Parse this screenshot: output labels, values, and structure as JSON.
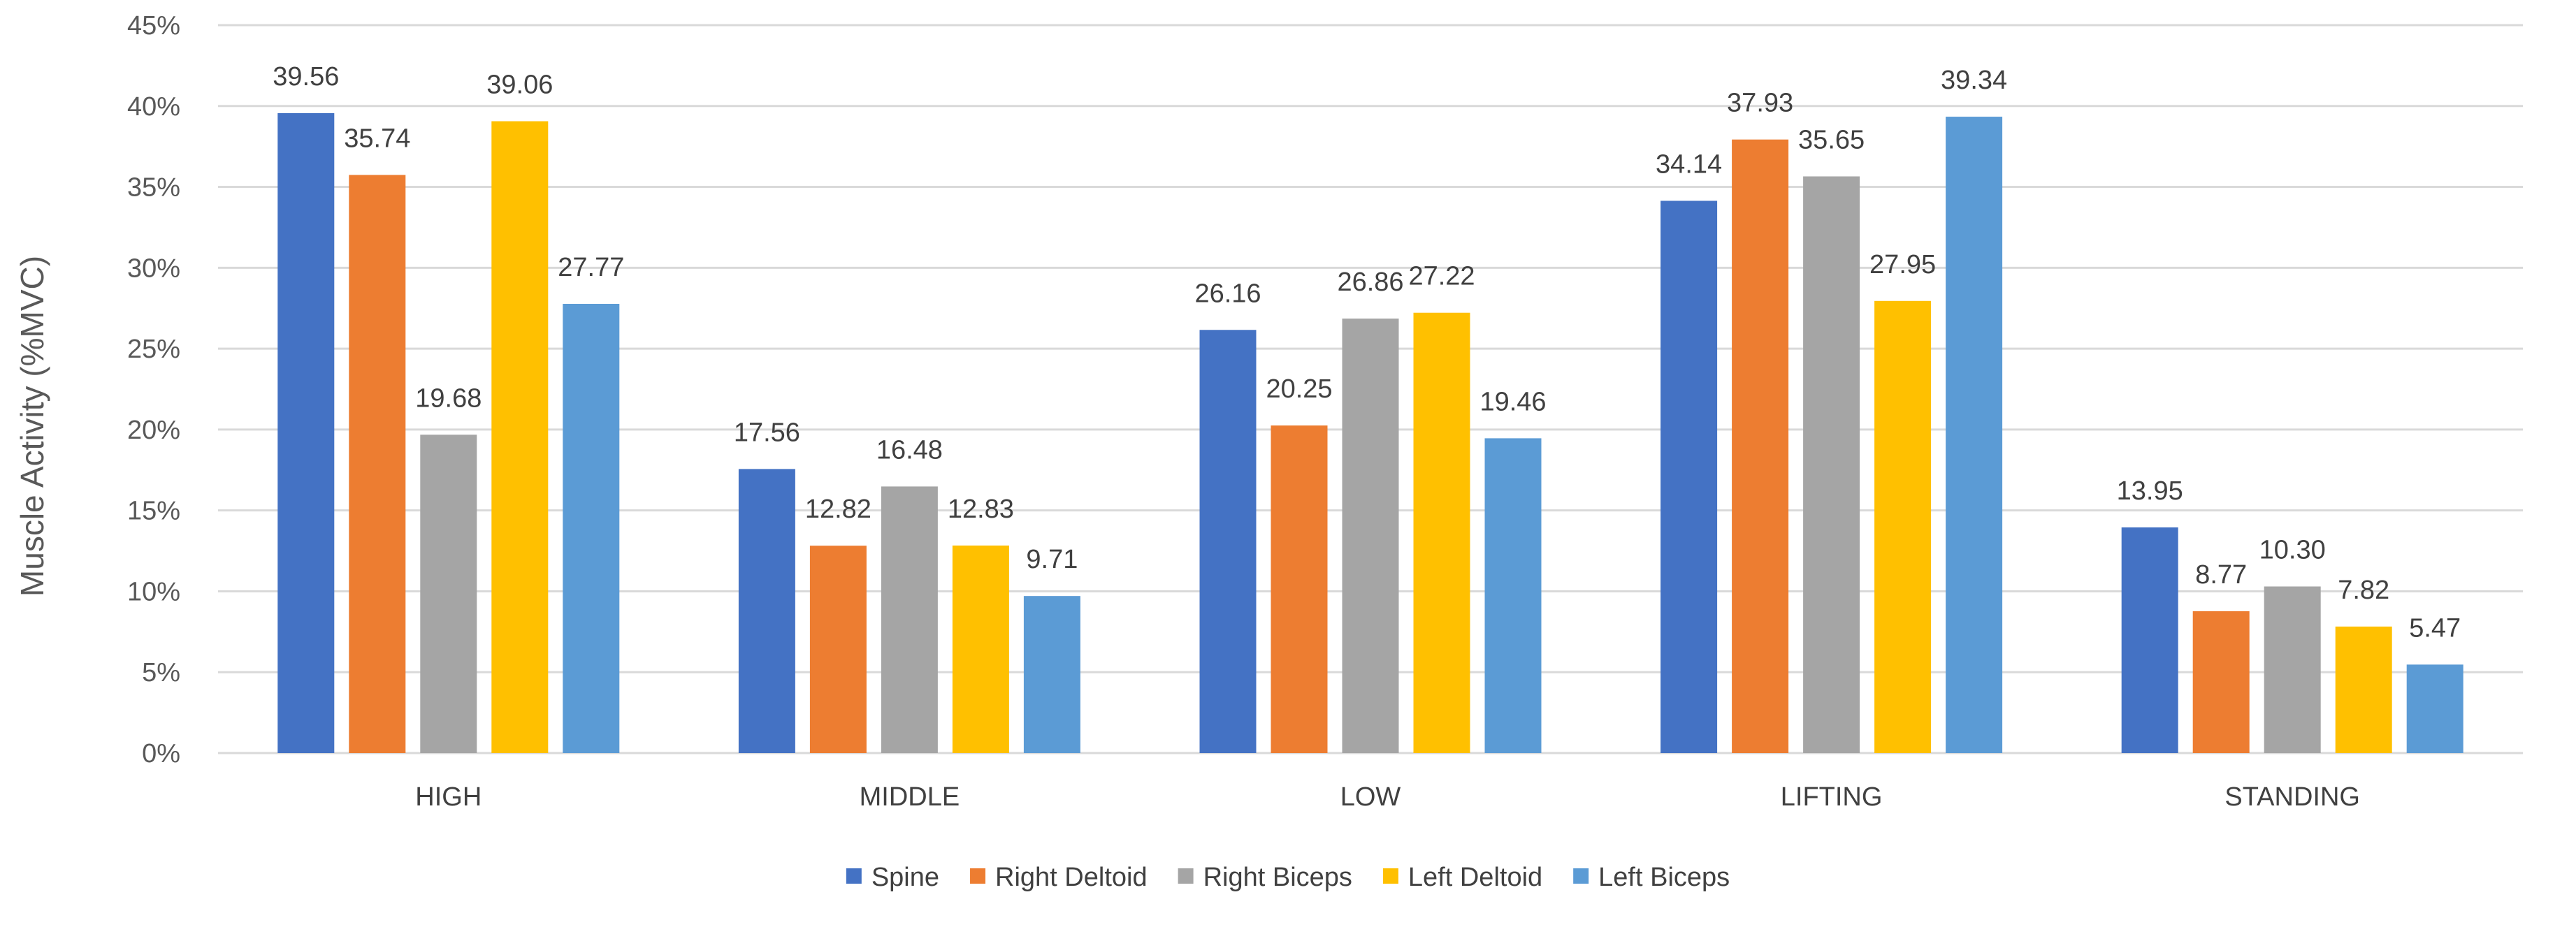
{
  "chart_data": {
    "type": "bar",
    "title": "",
    "xlabel": "",
    "ylabel": "Muscle Activity (%MVC)",
    "ylim": [
      0,
      45
    ],
    "yticks": [
      "0%",
      "5%",
      "10%",
      "15%",
      "20%",
      "25%",
      "30%",
      "35%",
      "40%",
      "45%"
    ],
    "ytick_values": [
      0,
      5,
      10,
      15,
      20,
      25,
      30,
      35,
      40,
      45
    ],
    "grid": true,
    "legend_position": "bottom",
    "categories": [
      "HIGH",
      "MIDDLE",
      "LOW",
      "LIFTING",
      "STANDING"
    ],
    "series": [
      {
        "name": "Spine",
        "color": "#4472C4",
        "values": [
          39.56,
          17.56,
          26.16,
          34.14,
          13.95
        ],
        "labels": [
          "39.56",
          "17.56",
          "26.16",
          "34.14",
          "13.95"
        ]
      },
      {
        "name": "Right Deltoid",
        "color": "#ED7D31",
        "values": [
          35.74,
          12.82,
          20.25,
          37.93,
          8.77
        ],
        "labels": [
          "35.74",
          "12.82",
          "20.25",
          "37.93",
          "8.77"
        ]
      },
      {
        "name": "Right Biceps",
        "color": "#A5A5A5",
        "values": [
          19.68,
          16.48,
          26.86,
          35.65,
          10.3
        ],
        "labels": [
          "19.68",
          "16.48",
          "26.86",
          "35.65",
          "10.30"
        ]
      },
      {
        "name": "Left Deltoid",
        "color": "#FFC000",
        "values": [
          39.06,
          12.83,
          27.22,
          27.95,
          7.82
        ],
        "labels": [
          "39.06",
          "12.83",
          "27.22",
          "27.95",
          "7.82"
        ]
      },
      {
        "name": "Left Biceps",
        "color": "#5B9BD5",
        "values": [
          27.77,
          9.71,
          19.46,
          39.34,
          5.47
        ],
        "labels": [
          "27.77",
          "9.71",
          "19.46",
          "39.34",
          "5.47"
        ]
      }
    ]
  }
}
